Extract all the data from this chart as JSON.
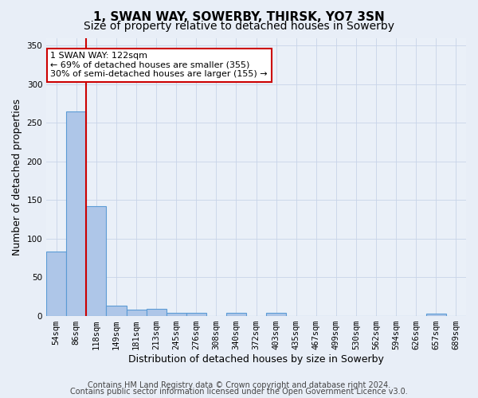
{
  "title_line1": "1, SWAN WAY, SOWERBY, THIRSK, YO7 3SN",
  "title_line2": "Size of property relative to detached houses in Sowerby",
  "xlabel": "Distribution of detached houses by size in Sowerby",
  "ylabel": "Number of detached properties",
  "categories": [
    "54sqm",
    "86sqm",
    "118sqm",
    "149sqm",
    "181sqm",
    "213sqm",
    "245sqm",
    "276sqm",
    "308sqm",
    "340sqm",
    "372sqm",
    "403sqm",
    "435sqm",
    "467sqm",
    "499sqm",
    "530sqm",
    "562sqm",
    "594sqm",
    "626sqm",
    "657sqm",
    "689sqm"
  ],
  "values": [
    83,
    265,
    142,
    13,
    8,
    9,
    4,
    4,
    0,
    4,
    0,
    4,
    0,
    0,
    0,
    0,
    0,
    0,
    0,
    3,
    0
  ],
  "bar_color": "#aec6e8",
  "bar_edge_color": "#5b9bd5",
  "vline_x": 1.5,
  "vline_color": "#cc0000",
  "ylim": [
    0,
    360
  ],
  "yticks": [
    0,
    50,
    100,
    150,
    200,
    250,
    300,
    350
  ],
  "annotation_box_text": "1 SWAN WAY: 122sqm\n← 69% of detached houses are smaller (355)\n30% of semi-detached houses are larger (155) →",
  "annotation_box_color": "#ffffff",
  "annotation_box_edgecolor": "#cc0000",
  "footer_line1": "Contains HM Land Registry data © Crown copyright and database right 2024.",
  "footer_line2": "Contains public sector information licensed under the Open Government Licence v3.0.",
  "bg_color": "#e8eef7",
  "plot_bg_color": "#eaf0f8",
  "grid_color": "#c8d4e8",
  "title_fontsize": 11,
  "subtitle_fontsize": 10,
  "tick_fontsize": 7.5,
  "ylabel_fontsize": 9,
  "xlabel_fontsize": 9,
  "footer_fontsize": 7,
  "annotation_fontsize": 8
}
